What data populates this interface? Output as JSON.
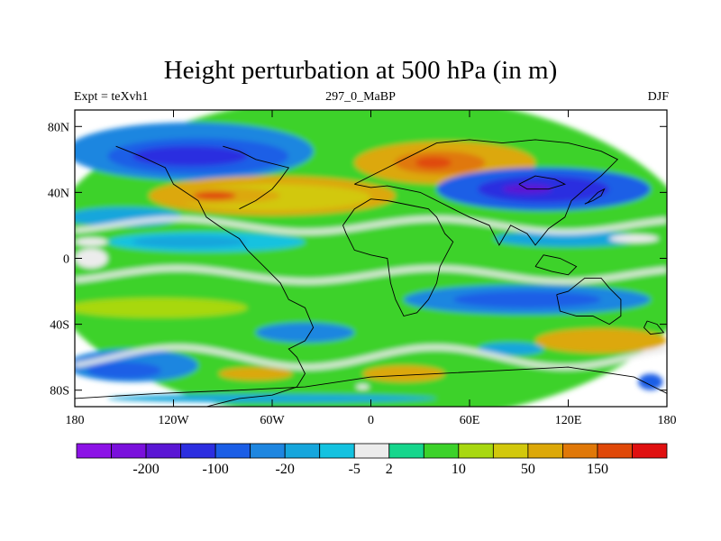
{
  "chart_data": {
    "type": "heatmap",
    "title": "Height perturbation at 500 hPa (in m)",
    "subtitle_left": "Expt = teXvh1",
    "subtitle_center": "297_0_MaBP",
    "subtitle_right": "DJF",
    "x": {
      "range": [
        -180,
        180
      ],
      "ticks": [
        {
          "value": -180,
          "label": "180"
        },
        {
          "value": -120,
          "label": "120W"
        },
        {
          "value": -60,
          "label": "60W"
        },
        {
          "value": 0,
          "label": "0"
        },
        {
          "value": 60,
          "label": "60E"
        },
        {
          "value": 120,
          "label": "120E"
        },
        {
          "value": 180,
          "label": "180"
        }
      ]
    },
    "y": {
      "range": [
        -90,
        90
      ],
      "ticks": [
        {
          "value": 80,
          "label": "80N"
        },
        {
          "value": 40,
          "label": "40N"
        },
        {
          "value": 0,
          "label": "0"
        },
        {
          "value": -40,
          "label": "40S"
        },
        {
          "value": -80,
          "label": "80S"
        }
      ]
    },
    "colorbar": {
      "colors": [
        "#8c12e6",
        "#7a10dc",
        "#5a16d4",
        "#2c2ee0",
        "#1b5ee6",
        "#1e86e0",
        "#16a6dc",
        "#14c2e0",
        "#ececec",
        "#16d68c",
        "#3cd22a",
        "#a8d810",
        "#d2c80c",
        "#dca808",
        "#e07808",
        "#e04808",
        "#e01010"
      ],
      "labels": [
        {
          "after_index": 1,
          "text": "-200"
        },
        {
          "after_index": 3,
          "text": "-100"
        },
        {
          "after_index": 5,
          "text": "-20"
        },
        {
          "after_index": 7,
          "text": "-5"
        },
        {
          "after_index": 8,
          "text": "2"
        },
        {
          "after_index": 10,
          "text": "10"
        },
        {
          "after_index": 12,
          "text": "50"
        },
        {
          "after_index": 14,
          "text": "150"
        }
      ]
    },
    "field_blobs": [
      {
        "lon": 0,
        "lat": 0,
        "dlon": 400,
        "dlat": 200,
        "color": "#3cd22a"
      },
      {
        "lon": -110,
        "lat": 65,
        "dlon": 150,
        "dlat": 35,
        "color": "#1e86e0"
      },
      {
        "lon": -105,
        "lat": 62,
        "dlon": 110,
        "dlat": 22,
        "color": "#1b5ee6"
      },
      {
        "lon": -110,
        "lat": 62,
        "dlon": 70,
        "dlat": 12,
        "color": "#2c2ee0"
      },
      {
        "lon": -150,
        "lat": 25,
        "dlon": 70,
        "dlat": 12,
        "color": "#16a6dc"
      },
      {
        "lon": -60,
        "lat": 38,
        "dlon": 150,
        "dlat": 24,
        "color": "#dca808"
      },
      {
        "lon": -60,
        "lat": 37,
        "dlon": 120,
        "dlat": 16,
        "color": "#d2c80c"
      },
      {
        "lon": -95,
        "lat": 38,
        "dlon": 80,
        "dlat": 10,
        "color": "#dca808"
      },
      {
        "lon": -95,
        "lat": 38,
        "dlon": 26,
        "dlat": 5,
        "color": "#e04808"
      },
      {
        "lon": 45,
        "lat": 58,
        "dlon": 110,
        "dlat": 26,
        "color": "#dca808"
      },
      {
        "lon": 42,
        "lat": 58,
        "dlon": 55,
        "dlat": 14,
        "color": "#e07808"
      },
      {
        "lon": 38,
        "lat": 58,
        "dlon": 22,
        "dlat": 7,
        "color": "#e04808"
      },
      {
        "lon": 105,
        "lat": 42,
        "dlon": 130,
        "dlat": 26,
        "color": "#1b5ee6"
      },
      {
        "lon": 105,
        "lat": 42,
        "dlon": 80,
        "dlat": 16,
        "color": "#2c2ee0"
      },
      {
        "lon": 95,
        "lat": 42,
        "dlon": 30,
        "dlat": 6,
        "color": "#5a16d4"
      },
      {
        "lon": -100,
        "lat": 10,
        "dlon": 120,
        "dlat": 12,
        "color": "#14c2e0"
      },
      {
        "lon": -110,
        "lat": 10,
        "dlon": 70,
        "dlat": 7,
        "color": "#16a6dc"
      },
      {
        "lon": 120,
        "lat": 12,
        "dlon": 90,
        "dlat": 10,
        "color": "#16a6dc"
      },
      {
        "lon": 160,
        "lat": 12,
        "dlon": 30,
        "dlat": 5,
        "color": "#ececec"
      },
      {
        "lon": -170,
        "lat": 10,
        "dlon": 20,
        "dlat": 5,
        "color": "#ececec"
      },
      {
        "lon": -170,
        "lat": 0,
        "dlon": 20,
        "dlat": 12,
        "color": "#ececec"
      },
      {
        "lon": 95,
        "lat": -25,
        "dlon": 150,
        "dlat": 18,
        "color": "#1e86e0"
      },
      {
        "lon": 95,
        "lat": -25,
        "dlon": 90,
        "dlat": 10,
        "color": "#1b5ee6"
      },
      {
        "lon": -130,
        "lat": -30,
        "dlon": 110,
        "dlat": 12,
        "color": "#a8d810"
      },
      {
        "lon": -145,
        "lat": -65,
        "dlon": 80,
        "dlat": 20,
        "color": "#1e86e0"
      },
      {
        "lon": -150,
        "lat": -68,
        "dlon": 45,
        "dlat": 10,
        "color": "#1b5ee6"
      },
      {
        "lon": -40,
        "lat": -45,
        "dlon": 60,
        "dlat": 12,
        "color": "#1e86e0"
      },
      {
        "lon": -70,
        "lat": -70,
        "dlon": 45,
        "dlat": 8,
        "color": "#dca808"
      },
      {
        "lon": 20,
        "lat": -70,
        "dlon": 50,
        "dlat": 10,
        "color": "#dca808"
      },
      {
        "lon": 140,
        "lat": -50,
        "dlon": 80,
        "dlat": 15,
        "color": "#dca808"
      },
      {
        "lon": 85,
        "lat": -55,
        "dlon": 40,
        "dlat": 8,
        "color": "#16a6dc"
      },
      {
        "lon": -60,
        "lat": -85,
        "dlon": 200,
        "dlat": 5,
        "color": "#16a6dc"
      },
      {
        "lon": 170,
        "lat": -75,
        "dlon": 15,
        "dlat": 10,
        "color": "#1b5ee6"
      },
      {
        "lon": -5,
        "lat": -78,
        "dlon": 8,
        "dlat": 3,
        "color": "#ececec"
      }
    ],
    "band_boundaries": [
      {
        "lat": 20,
        "amplitude": 4,
        "color": "#ececec"
      },
      {
        "lat": -10,
        "amplitude": 4,
        "color": "#ececec"
      },
      {
        "lat": -60,
        "amplitude": 6,
        "color": "#ececec"
      }
    ],
    "coastline_note": "land outlines drawn as black polylines"
  }
}
